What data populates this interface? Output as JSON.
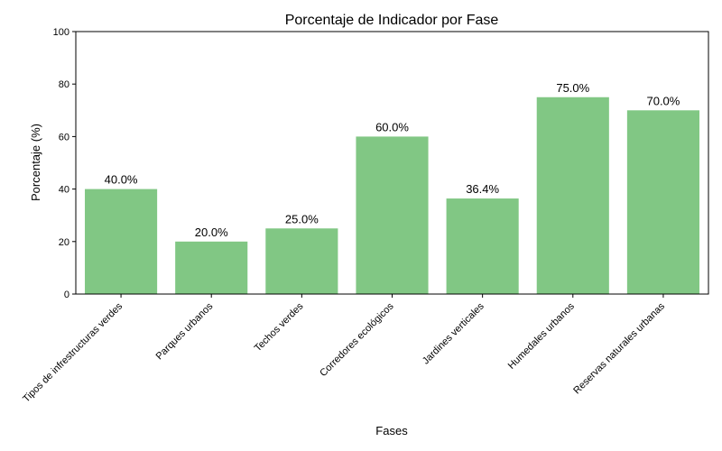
{
  "chart_data": {
    "type": "bar",
    "title": "Porcentaje de Indicador por Fase",
    "xlabel": "Fases",
    "ylabel": "Porcentaje (%)",
    "ylim": [
      0,
      100
    ],
    "yticks": [
      0,
      20,
      40,
      60,
      80,
      100
    ],
    "categories": [
      "Tipos de infrestructuras verdes",
      "Parques urbanos",
      "Techos verdes",
      "Corredores ecológicos",
      "Jardines verticales",
      "Humedales urbanos",
      "Reservas naturales urbanas"
    ],
    "values": [
      40.0,
      20.0,
      25.0,
      60.0,
      36.4,
      75.0,
      70.0
    ],
    "data_labels": [
      "40.0%",
      "20.0%",
      "25.0%",
      "60.0%",
      "36.4%",
      "75.0%",
      "70.0%"
    ],
    "bar_color": "#81c784",
    "grid": false,
    "legend": "none"
  }
}
